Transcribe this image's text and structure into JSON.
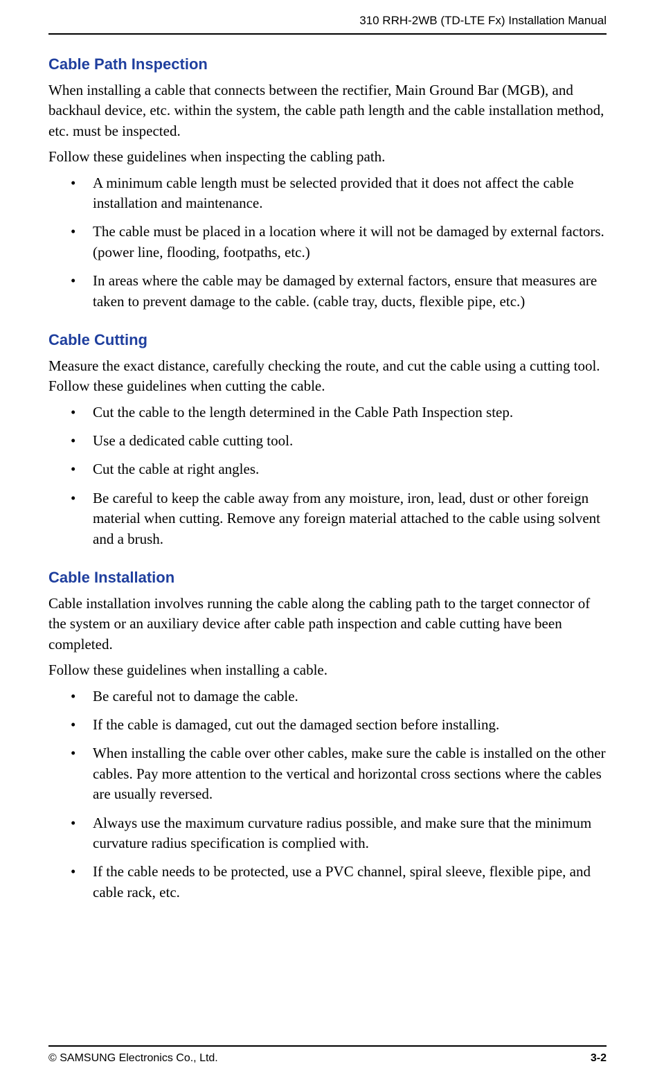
{
  "header": {
    "title": "310 RRH-2WB (TD-LTE Fx) Installation Manual"
  },
  "sections": [
    {
      "title": "Cable Path Inspection",
      "paragraphs": [
        "When installing a cable that connects between the rectifier, Main Ground Bar (MGB), and backhaul device, etc. within the system, the cable path length and the cable installation method, etc. must be inspected.",
        "Follow these guidelines when inspecting the cabling path."
      ],
      "bullets": [
        "A minimum cable length must be selected provided that it does not affect the cable installation and maintenance.",
        "The cable must be placed in a location where it will not be damaged by external factors. (power line, flooding, footpaths, etc.)",
        "In areas where the cable may be damaged by external factors, ensure that measures are taken to prevent damage to the cable. (cable tray, ducts, flexible pipe, etc.)"
      ]
    },
    {
      "title": "Cable Cutting",
      "paragraphs": [
        "Measure the exact distance, carefully checking the route, and cut the cable using a cutting tool. Follow these guidelines when cutting the cable."
      ],
      "bullets": [
        "Cut the cable to the length determined in the Cable Path Inspection step.",
        "Use a dedicated cable cutting tool.",
        "Cut the cable at right angles.",
        "Be careful to keep the cable away from any moisture, iron, lead, dust or other foreign material when cutting. Remove any foreign material attached to the cable using solvent and a brush."
      ]
    },
    {
      "title": "Cable Installation",
      "paragraphs": [
        "Cable installation involves running the cable along the cabling path to the target connector of the system or an auxiliary device after cable path inspection and cable cutting have been completed.",
        "Follow these guidelines when installing a cable."
      ],
      "bullets": [
        "Be careful not to damage the cable.",
        "If the cable is damaged, cut out the damaged section before installing.",
        "When installing the cable over other cables, make sure the cable is installed on the other cables. Pay more attention to the vertical and horizontal cross sections where the cables are usually reversed.",
        "Always use the maximum curvature radius possible, and make sure that the minimum curvature radius specification is complied with.",
        "If the cable needs to be protected, use a PVC channel, spiral sleeve, flexible pipe, and cable rack, etc."
      ]
    }
  ],
  "footer": {
    "copyright": "© SAMSUNG Electronics Co., Ltd.",
    "page": "3-2"
  },
  "colors": {
    "heading_blue": "#1f3f9e",
    "text_black": "#000000",
    "border": "#000000",
    "background": "#ffffff"
  }
}
